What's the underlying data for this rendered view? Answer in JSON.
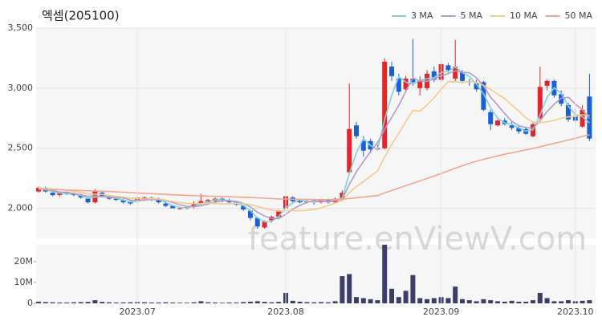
{
  "chart_data": [
    {
      "type": "candlestick",
      "title": "엑셈(205100)",
      "watermark": "feature.enViewV.com",
      "categories": [
        null,
        null,
        null,
        null,
        null,
        null,
        null,
        null,
        null,
        null,
        null,
        null,
        null,
        null,
        "2023.07",
        null,
        null,
        null,
        null,
        null,
        null,
        null,
        null,
        null,
        null,
        null,
        null,
        null,
        null,
        null,
        null,
        null,
        null,
        null,
        null,
        "2023.08",
        null,
        null,
        null,
        null,
        null,
        null,
        null,
        null,
        null,
        null,
        null,
        null,
        null,
        null,
        null,
        null,
        null,
        null,
        null,
        null,
        null,
        "2023.09",
        null,
        null,
        null,
        null,
        null,
        null,
        null,
        null,
        null,
        null,
        null,
        null,
        null,
        null,
        null,
        null,
        null,
        null,
        "2023.10",
        null,
        null
      ],
      "open": [
        2140,
        2170,
        2130,
        2110,
        2130,
        2120,
        2110,
        2080,
        2050,
        2130,
        2090,
        2080,
        2070,
        2050,
        2060,
        2090,
        2090,
        2080,
        2040,
        2020,
        2000,
        2000,
        2010,
        2040,
        2050,
        2060,
        2080,
        2060,
        2050,
        2020,
        1980,
        1920,
        1840,
        1900,
        1930,
        2000,
        2090,
        2060,
        2050,
        2060,
        2050,
        2070,
        2050,
        2080,
        2300,
        2690,
        2560,
        2560,
        2490,
        2500,
        3180,
        3080,
        2990,
        3080,
        3000,
        3000,
        3140,
        3070,
        3190,
        3080,
        3130,
        3060,
        3040,
        3050,
        2800,
        2690,
        2730,
        2690,
        2670,
        2660,
        2600,
        2750,
        3020,
        3060,
        2950,
        2860,
        2770,
        2680,
        2930
      ],
      "high": [
        2180,
        2180,
        2140,
        2140,
        2140,
        2130,
        2120,
        2090,
        2160,
        2140,
        2110,
        2090,
        2080,
        2060,
        2100,
        2100,
        2100,
        2090,
        2060,
        2030,
        2010,
        2020,
        2060,
        2120,
        2080,
        2090,
        2090,
        2080,
        2060,
        2030,
        1990,
        1930,
        1900,
        1940,
        1990,
        2140,
        2100,
        2080,
        2070,
        2070,
        2080,
        2080,
        2090,
        2150,
        3040,
        2720,
        2600,
        2580,
        2530,
        3250,
        3220,
        3120,
        3100,
        3410,
        3100,
        3150,
        3180,
        3230,
        3210,
        3400,
        3150,
        3080,
        3070,
        3060,
        2820,
        2740,
        2750,
        2720,
        2690,
        2680,
        2720,
        3180,
        3070,
        3070,
        2980,
        2880,
        2830,
        2860,
        3120
      ],
      "low": [
        2130,
        2130,
        2100,
        2100,
        2110,
        2100,
        2080,
        2040,
        2040,
        2090,
        2070,
        2060,
        2040,
        2030,
        2050,
        2070,
        2060,
        2040,
        2010,
        2000,
        1990,
        1990,
        2000,
        2030,
        2040,
        2050,
        2050,
        2040,
        2020,
        1980,
        1900,
        1830,
        1830,
        1880,
        1920,
        1990,
        2040,
        2040,
        2040,
        2030,
        2040,
        2040,
        2040,
        2070,
        2280,
        2580,
        2430,
        2460,
        2480,
        2490,
        3060,
        2940,
        2970,
        3020,
        2940,
        2980,
        3050,
        3060,
        3130,
        3060,
        3040,
        3020,
        2970,
        2810,
        2650,
        2680,
        2690,
        2650,
        2620,
        2610,
        2590,
        2740,
        2980,
        2920,
        2850,
        2720,
        2710,
        2670,
        2560
      ],
      "close": [
        2170,
        2140,
        2110,
        2130,
        2120,
        2110,
        2090,
        2050,
        2140,
        2100,
        2080,
        2070,
        2050,
        2040,
        2090,
        2090,
        2080,
        2050,
        2020,
        2000,
        2000,
        2010,
        2040,
        2060,
        2070,
        2080,
        2060,
        2050,
        2030,
        1990,
        1920,
        1850,
        1890,
        1930,
        1980,
        2100,
        2060,
        2050,
        2060,
        2050,
        2070,
        2050,
        2080,
        2130,
        2660,
        2600,
        2480,
        2490,
        2500,
        3220,
        3100,
        2970,
        3080,
        3050,
        3070,
        3120,
        3070,
        3200,
        3150,
        3180,
        3060,
        3050,
        2990,
        2820,
        2700,
        2730,
        2700,
        2670,
        2640,
        2620,
        2700,
        3010,
        3060,
        2940,
        2870,
        2740,
        2730,
        2820,
        2580
      ],
      "up_color": "#e8242b",
      "down_color": "#1b5fd8",
      "ylim": [
        1750,
        3500
      ],
      "yticks": [
        {
          "value": 2000,
          "label": "2,000"
        },
        {
          "value": 2500,
          "label": "2,500"
        },
        {
          "value": 3000,
          "label": "3,000"
        },
        {
          "value": 3500,
          "label": "3,500"
        }
      ],
      "grid": true,
      "legend": "top-right",
      "series": [
        {
          "name": "3 MA",
          "color": "#7fd3d6",
          "values": [
            2165,
            2155,
            2140,
            2127,
            2120,
            2120,
            2107,
            2083,
            2093,
            2097,
            2107,
            2083,
            2067,
            2053,
            2060,
            2073,
            2087,
            2073,
            2050,
            2023,
            2007,
            2003,
            2017,
            2037,
            2057,
            2070,
            2070,
            2063,
            2047,
            2023,
            1980,
            1920,
            1887,
            1890,
            1933,
            2003,
            2047,
            2070,
            2057,
            2053,
            2060,
            2057,
            2067,
            2087,
            2290,
            2463,
            2580,
            2523,
            2490,
            2737,
            2940,
            3097,
            3050,
            3033,
            3067,
            3080,
            3087,
            3130,
            3140,
            3177,
            3130,
            3097,
            3033,
            2953,
            2837,
            2750,
            2710,
            2700,
            2670,
            2643,
            2653,
            2777,
            2923,
            3003,
            2957,
            2850,
            2780,
            2763,
            2710
          ]
        },
        {
          "name": "5 MA",
          "color": "#b39ac8",
          "values": [
            2160,
            2155,
            2150,
            2135,
            2134,
            2122,
            2112,
            2100,
            2102,
            2098,
            2092,
            2088,
            2088,
            2068,
            2066,
            2068,
            2074,
            2070,
            2066,
            2048,
            2030,
            2016,
            2014,
            2022,
            2036,
            2052,
            2062,
            2064,
            2058,
            2042,
            2010,
            1968,
            1936,
            1916,
            1914,
            1950,
            1994,
            2024,
            2050,
            2064,
            2058,
            2056,
            2062,
            2076,
            2198,
            2304,
            2390,
            2472,
            2546,
            2658,
            2758,
            2856,
            2974,
            3084,
            3058,
            3058,
            3078,
            3102,
            3122,
            3144,
            3132,
            3128,
            3086,
            3020,
            2924,
            2858,
            2788,
            2724,
            2688,
            2672,
            2666,
            2728,
            2806,
            2866,
            2916,
            2924,
            2868,
            2820,
            2748
          ]
        },
        {
          "name": "10 MA",
          "color": "#f5c98a",
          "values": [
            2170,
            2165,
            2160,
            2155,
            2150,
            2140,
            2132,
            2120,
            2118,
            2116,
            2107,
            2100,
            2094,
            2085,
            2082,
            2080,
            2079,
            2079,
            2067,
            2057,
            2047,
            2041,
            2038,
            2040,
            2043,
            2041,
            2038,
            2038,
            2040,
            2039,
            2031,
            2015,
            1999,
            1986,
            1978,
            1980,
            1980,
            1980,
            1983,
            1989,
            2004,
            2024,
            2043,
            2063,
            2131,
            2181,
            2223,
            2267,
            2311,
            2428,
            2531,
            2623,
            2723,
            2815,
            2809,
            2861,
            2920,
            2991,
            3056,
            3052,
            3048,
            3056,
            3047,
            3024,
            2989,
            2950,
            2913,
            2860,
            2809,
            2753,
            2717,
            2713,
            2720,
            2732,
            2749,
            2761,
            2764,
            2779,
            2773
          ]
        },
        {
          "name": "50 MA",
          "color": "#f4a48c",
          "values": [
            2160,
            2158,
            2156,
            2154,
            2152,
            2150,
            2148,
            2146,
            2144,
            2142,
            2140,
            2137,
            2134,
            2131,
            2128,
            2125,
            2122,
            2119,
            2116,
            2113,
            2110,
            2108,
            2106,
            2104,
            2102,
            2100,
            2098,
            2096,
            2094,
            2092,
            2090,
            2087,
            2084,
            2081,
            2078,
            2077,
            2076,
            2075,
            2074,
            2073,
            2072,
            2072,
            2073,
            2075,
            2082,
            2088,
            2094,
            2100,
            2106,
            2128,
            2148,
            2168,
            2188,
            2208,
            2228,
            2248,
            2268,
            2290,
            2312,
            2334,
            2354,
            2374,
            2392,
            2408,
            2422,
            2436,
            2450,
            2462,
            2474,
            2486,
            2498,
            2512,
            2526,
            2540,
            2554,
            2568,
            2582,
            2598,
            2612
          ]
        }
      ]
    },
    {
      "type": "bar",
      "color": "#3d3d6b",
      "values": [
        800000,
        600000,
        500000,
        400000,
        400000,
        500000,
        600000,
        700000,
        1500000,
        700000,
        500000,
        400000,
        400000,
        500000,
        600000,
        500000,
        400000,
        400000,
        500000,
        400000,
        300000,
        300000,
        500000,
        1000000,
        500000,
        400000,
        300000,
        400000,
        400000,
        600000,
        800000,
        1000000,
        700000,
        500000,
        700000,
        5000000,
        1200000,
        800000,
        600000,
        500000,
        600000,
        500000,
        1000000,
        13000000,
        14000000,
        3000000,
        2500000,
        2000000,
        1500000,
        28000000,
        7000000,
        3000000,
        6000000,
        13500000,
        2500000,
        2000000,
        2500000,
        3000000,
        2500000,
        8000000,
        2000000,
        1500000,
        1000000,
        2000000,
        1500000,
        1000000,
        800000,
        1200000,
        800000,
        800000,
        1500000,
        5000000,
        2500000,
        1000000,
        1000000,
        1500000,
        1000000,
        1200000,
        1500000
      ],
      "ylim": [
        0,
        28000000
      ],
      "yticks": [
        0,
        {
          "value": 10000000,
          "label": "10M"
        },
        {
          "value": 20000000,
          "label": "20M"
        }
      ]
    }
  ]
}
